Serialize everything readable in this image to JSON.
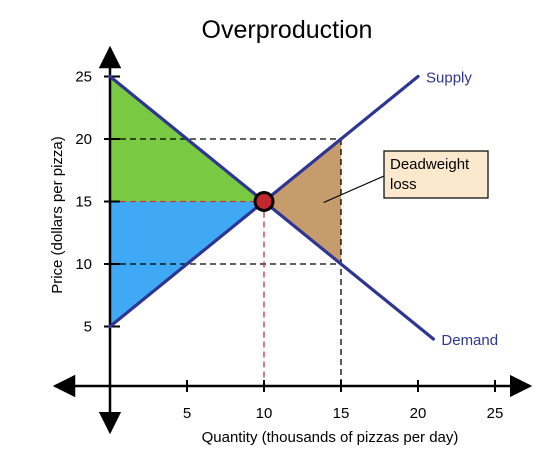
{
  "chart_data": {
    "type": "line",
    "title": "Overproduction",
    "xlabel": "Quantity (thousands of pizzas per day)",
    "ylabel": "Price (dollars per pizza)",
    "xlim": [
      0,
      25
    ],
    "ylim": [
      0,
      25
    ],
    "x_ticks": [
      5,
      10,
      15,
      20,
      25
    ],
    "y_ticks": [
      5,
      10,
      15,
      20,
      25
    ],
    "series": [
      {
        "name": "Supply",
        "x": [
          0,
          20
        ],
        "y": [
          5,
          25
        ]
      },
      {
        "name": "Demand",
        "x": [
          0,
          21
        ],
        "y": [
          25,
          4
        ]
      }
    ],
    "equilibrium": {
      "x": 10,
      "y": 15
    },
    "guide_lines": [
      {
        "style": "dashed",
        "color": "#000000",
        "points": [
          [
            0,
            20
          ],
          [
            15,
            20
          ]
        ]
      },
      {
        "style": "dashed",
        "color": "#000000",
        "points": [
          [
            0,
            10
          ],
          [
            15,
            10
          ]
        ]
      },
      {
        "style": "dashed",
        "color": "#000000",
        "points": [
          [
            15,
            20
          ],
          [
            15,
            0
          ]
        ]
      },
      {
        "style": "dashed",
        "color": "#c8323c",
        "points": [
          [
            0,
            15
          ],
          [
            10,
            15
          ]
        ]
      },
      {
        "style": "dashed",
        "color": "#c8323c",
        "points": [
          [
            10,
            15
          ],
          [
            10,
            0
          ]
        ]
      }
    ],
    "regions": [
      {
        "color": "#7ac943",
        "points": [
          [
            0,
            25
          ],
          [
            10,
            15
          ],
          [
            0,
            15
          ]
        ]
      },
      {
        "color": "#3fa9f5",
        "points": [
          [
            0,
            15
          ],
          [
            10,
            15
          ],
          [
            0,
            5
          ]
        ]
      },
      {
        "color": "#c69c6d",
        "points": [
          [
            10,
            15
          ],
          [
            15,
            20
          ],
          [
            15,
            10
          ]
        ]
      }
    ],
    "annotation": {
      "text_lines": [
        "Deadweight",
        "loss"
      ],
      "points_to": {
        "x": 14,
        "y": 15
      }
    },
    "grid": false,
    "legend": "none"
  },
  "colors": {
    "curve": "#2e3592",
    "equilibrium_fill": "#c1272d",
    "callout_bg": "#fce9cd",
    "axis": "#000000"
  }
}
